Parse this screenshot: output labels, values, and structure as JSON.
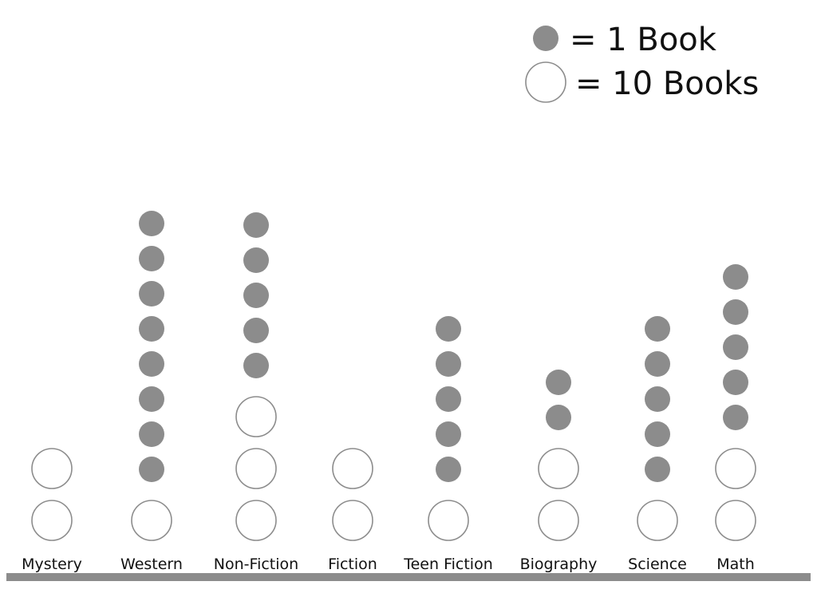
{
  "chart_data": {
    "type": "pictograph",
    "legend": [
      {
        "symbol": "filled-circle",
        "text": "= 1 Book",
        "value": 1
      },
      {
        "symbol": "open-circle",
        "text": "= 10 Books",
        "value": 10
      }
    ],
    "categories": [
      "Mystery",
      "Western",
      "Non-Fiction",
      "Fiction",
      "Teen Fiction",
      "Biography",
      "Science",
      "Math"
    ],
    "counts": [
      {
        "tens": 2,
        "ones": 0,
        "total": 20
      },
      {
        "tens": 1,
        "ones": 8,
        "total": 18
      },
      {
        "tens": 3,
        "ones": 5,
        "total": 35
      },
      {
        "tens": 2,
        "ones": 0,
        "total": 20
      },
      {
        "tens": 1,
        "ones": 5,
        "total": 15
      },
      {
        "tens": 2,
        "ones": 2,
        "total": 22
      },
      {
        "tens": 1,
        "ones": 5,
        "total": 15
      },
      {
        "tens": 2,
        "ones": 5,
        "total": 25
      }
    ],
    "colors": {
      "filled": "#8c8c8c",
      "open_stroke": "#8c8c8c",
      "baseline": "#8c8c8c",
      "text": "#111111"
    }
  }
}
